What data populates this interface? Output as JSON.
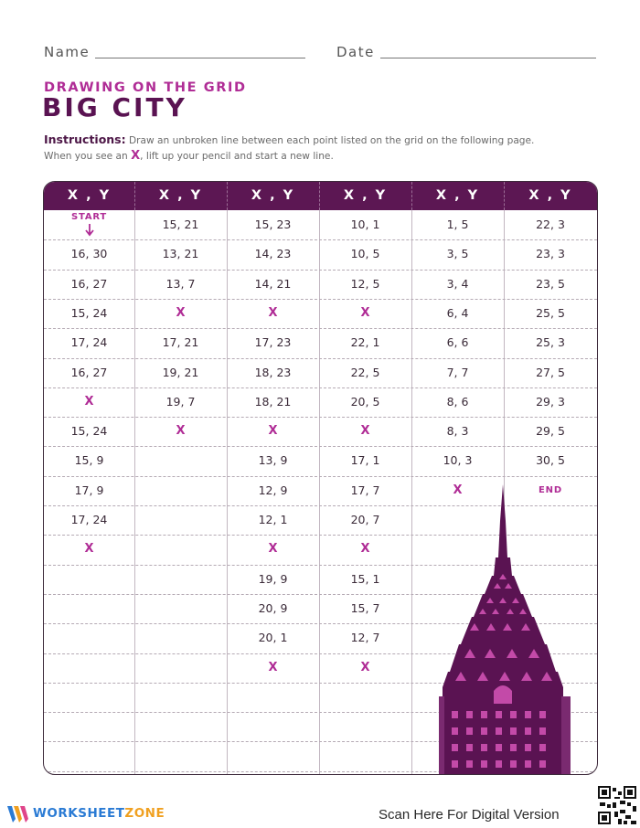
{
  "header": {
    "name_label": "Name",
    "date_label": "Date"
  },
  "subtitle": "DRAWING ON THE GRID",
  "title": "BIG CITY",
  "instructions": {
    "label": "Instructions:",
    "line1": "Draw an unbroken line between each point listed on the grid on the following page.",
    "line2a": "When you see an",
    "x_mark": "X",
    "line2b": ", lift up your pencil and start a new line."
  },
  "table": {
    "headers": [
      "X , Y",
      "X , Y",
      "X , Y",
      "X , Y",
      "X , Y",
      "X , Y"
    ],
    "start_label": "START",
    "end_label": "END",
    "columns": [
      [
        "START",
        "16, 30",
        "16, 27",
        "15, 24",
        "17, 24",
        "16, 27",
        "X",
        "15, 24",
        "15, 9",
        "17, 9",
        "17, 24",
        "X"
      ],
      [
        "15, 21",
        "13, 21",
        "13, 7",
        "X",
        "17, 21",
        "19, 21",
        "19, 7",
        "X"
      ],
      [
        "15, 23",
        "14, 23",
        "14, 21",
        "X",
        "17, 23",
        "18, 23",
        "18, 21",
        "X",
        "13, 9",
        "12, 9",
        "12, 1",
        "X",
        "19, 9",
        "20, 9",
        "20, 1",
        "X"
      ],
      [
        "10, 1",
        "10, 5",
        "12, 5",
        "X",
        "22, 1",
        "22, 5",
        "20, 5",
        "X",
        "17, 1",
        "17, 7",
        "20, 7",
        "X",
        "15, 1",
        "15, 7",
        "12, 7",
        "X"
      ],
      [
        "1, 5",
        "3, 5",
        "3, 4",
        "6, 4",
        "6, 6",
        "7, 7",
        "8, 6",
        "8, 3",
        "10, 3",
        "X"
      ],
      [
        "22, 3",
        "23, 3",
        "23, 5",
        "25, 5",
        "25, 3",
        "27, 5",
        "29, 3",
        "29, 5",
        "30, 5",
        "END"
      ]
    ]
  },
  "footer": {
    "logo_part1": "WORKSHEET",
    "logo_part2": "ZONE",
    "scan_text": "Scan Here For Digital Version"
  },
  "colors": {
    "purple_dark": "#5c1753",
    "magenta": "#b02d96",
    "logo_blue": "#2b7bd4",
    "logo_orange": "#f0a020"
  },
  "icons": {
    "logo": "worksheetzone-w-icon",
    "qr": "qr-code-icon",
    "illustration": "skyscraper-illustration"
  }
}
